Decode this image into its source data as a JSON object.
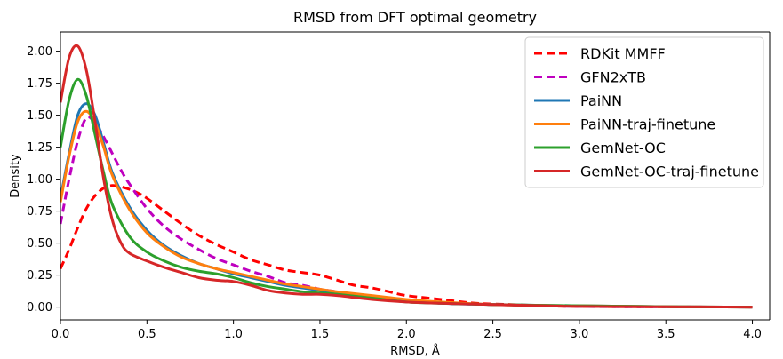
{
  "chart_data": {
    "type": "line",
    "title": "RMSD from DFT optimal geometry",
    "xlabel": "RMSD, Å",
    "ylabel": "Density",
    "xlim": [
      0,
      4.1
    ],
    "ylim": [
      -0.1,
      2.15
    ],
    "xticks": [
      0.0,
      0.5,
      1.0,
      1.5,
      2.0,
      2.5,
      3.0,
      3.5,
      4.0
    ],
    "xtick_labels": [
      "0.0",
      "0.5",
      "1.0",
      "1.5",
      "2.0",
      "2.5",
      "3.0",
      "3.5",
      "4.0"
    ],
    "yticks": [
      0.0,
      0.25,
      0.5,
      0.75,
      1.0,
      1.25,
      1.5,
      1.75,
      2.0
    ],
    "ytick_labels": [
      "0.00",
      "0.25",
      "0.50",
      "0.75",
      "1.00",
      "1.25",
      "1.50",
      "1.75",
      "2.00"
    ],
    "grid": false,
    "legend_position": "top-right",
    "series": [
      {
        "name": "RDKit MMFF",
        "color": "#ff0000",
        "dashed": true,
        "x": [
          0.0,
          0.05,
          0.1,
          0.15,
          0.2,
          0.25,
          0.3,
          0.35,
          0.4,
          0.45,
          0.5,
          0.6,
          0.7,
          0.8,
          0.9,
          1.0,
          1.1,
          1.2,
          1.3,
          1.4,
          1.5,
          1.6,
          1.7,
          1.8,
          1.9,
          2.0,
          2.2,
          2.4,
          2.6,
          2.8,
          3.0,
          3.5,
          4.0
        ],
        "y": [
          0.3,
          0.45,
          0.62,
          0.77,
          0.87,
          0.93,
          0.95,
          0.94,
          0.92,
          0.89,
          0.85,
          0.75,
          0.65,
          0.56,
          0.49,
          0.43,
          0.37,
          0.33,
          0.29,
          0.27,
          0.25,
          0.21,
          0.17,
          0.15,
          0.12,
          0.09,
          0.06,
          0.03,
          0.02,
          0.01,
          0.005,
          0.002,
          0.0
        ]
      },
      {
        "name": "GFN2xTB",
        "color": "#bf00bf",
        "dashed": true,
        "x": [
          0.0,
          0.05,
          0.1,
          0.15,
          0.2,
          0.25,
          0.3,
          0.35,
          0.4,
          0.5,
          0.6,
          0.7,
          0.8,
          0.9,
          1.0,
          1.1,
          1.2,
          1.3,
          1.4,
          1.5,
          1.6,
          1.8,
          2.0,
          2.2,
          2.5,
          3.0,
          3.5,
          4.0
        ],
        "y": [
          0.65,
          1.0,
          1.3,
          1.48,
          1.44,
          1.33,
          1.2,
          1.07,
          0.96,
          0.77,
          0.63,
          0.53,
          0.45,
          0.38,
          0.33,
          0.28,
          0.24,
          0.19,
          0.17,
          0.14,
          0.12,
          0.08,
          0.05,
          0.03,
          0.02,
          0.005,
          0.002,
          0.0
        ]
      },
      {
        "name": "PaiNN",
        "color": "#1f77b4",
        "dashed": false,
        "x": [
          0.0,
          0.05,
          0.1,
          0.15,
          0.2,
          0.25,
          0.3,
          0.4,
          0.5,
          0.6,
          0.7,
          0.8,
          0.9,
          1.0,
          1.1,
          1.2,
          1.3,
          1.4,
          1.5,
          1.6,
          1.8,
          2.0,
          2.2,
          2.5,
          3.0,
          3.5,
          4.0
        ],
        "y": [
          0.85,
          1.2,
          1.5,
          1.59,
          1.5,
          1.28,
          1.05,
          0.78,
          0.6,
          0.48,
          0.4,
          0.34,
          0.3,
          0.26,
          0.23,
          0.2,
          0.17,
          0.15,
          0.13,
          0.11,
          0.08,
          0.05,
          0.03,
          0.02,
          0.01,
          0.003,
          0.0
        ]
      },
      {
        "name": "PaiNN-traj-finetune",
        "color": "#ff7f0e",
        "dashed": false,
        "x": [
          0.0,
          0.05,
          0.1,
          0.15,
          0.2,
          0.25,
          0.3,
          0.4,
          0.5,
          0.6,
          0.7,
          0.8,
          0.9,
          1.0,
          1.1,
          1.2,
          1.3,
          1.4,
          1.5,
          1.6,
          1.8,
          2.0,
          2.2,
          2.5,
          3.0,
          3.5,
          4.0
        ],
        "y": [
          0.82,
          1.18,
          1.45,
          1.53,
          1.44,
          1.25,
          1.03,
          0.76,
          0.58,
          0.47,
          0.39,
          0.34,
          0.3,
          0.27,
          0.24,
          0.21,
          0.18,
          0.16,
          0.14,
          0.12,
          0.09,
          0.06,
          0.04,
          0.02,
          0.01,
          0.003,
          0.0
        ]
      },
      {
        "name": "GemNet-OC",
        "color": "#2ca02c",
        "dashed": false,
        "x": [
          0.0,
          0.05,
          0.1,
          0.15,
          0.2,
          0.25,
          0.3,
          0.4,
          0.5,
          0.6,
          0.7,
          0.8,
          0.9,
          1.0,
          1.1,
          1.2,
          1.3,
          1.4,
          1.5,
          1.6,
          1.8,
          2.0,
          2.2,
          2.5,
          3.0,
          3.5,
          4.0
        ],
        "y": [
          1.25,
          1.62,
          1.78,
          1.65,
          1.35,
          1.05,
          0.8,
          0.55,
          0.43,
          0.36,
          0.31,
          0.28,
          0.26,
          0.23,
          0.19,
          0.16,
          0.14,
          0.12,
          0.11,
          0.1,
          0.07,
          0.04,
          0.03,
          0.02,
          0.01,
          0.003,
          0.0
        ]
      },
      {
        "name": "GemNet-OC-traj-finetune",
        "color": "#d62728",
        "dashed": false,
        "x": [
          0.0,
          0.05,
          0.1,
          0.15,
          0.2,
          0.25,
          0.3,
          0.35,
          0.4,
          0.5,
          0.6,
          0.7,
          0.8,
          0.9,
          1.0,
          1.1,
          1.2,
          1.3,
          1.4,
          1.5,
          1.6,
          1.8,
          2.0,
          2.2,
          2.5,
          3.0,
          3.5,
          4.0
        ],
        "y": [
          1.6,
          1.95,
          2.04,
          1.85,
          1.45,
          1.0,
          0.68,
          0.5,
          0.42,
          0.36,
          0.31,
          0.27,
          0.23,
          0.21,
          0.2,
          0.17,
          0.13,
          0.11,
          0.1,
          0.1,
          0.09,
          0.06,
          0.04,
          0.03,
          0.02,
          0.005,
          0.002,
          0.0
        ]
      }
    ]
  }
}
